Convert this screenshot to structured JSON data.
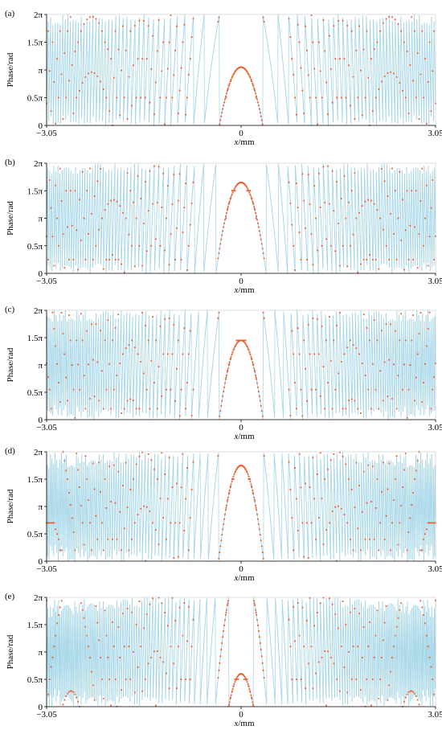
{
  "colors": {
    "curve": "#9fd3e6",
    "samples": "#f05a28",
    "axis": "#000000"
  },
  "chart_data": [
    {
      "panel_label": "(a)",
      "type": "line",
      "xlabel_var": "x",
      "xlabel_unit": "/mm",
      "ylabel": "Phase/rad",
      "x_ticks": [
        "−3.05",
        "0",
        "3.05"
      ],
      "y_ticks": [
        "0",
        "0.5π",
        "π",
        "1.5π",
        "2π"
      ],
      "xlim": [
        -3.05,
        3.05
      ],
      "ylim_pi": [
        0,
        2
      ],
      "series": [
        {
          "values_note": "",
          "wrap_period_pi": 2
        }
      ],
      "center_phase_pi": 1.05,
      "sample_levels_pi": [
        0.5,
        1.2,
        1.5,
        1.7
      ]
    },
    {
      "panel_label": "(b)",
      "type": "line",
      "xlabel_var": "x",
      "xlabel_unit": "/mm",
      "ylabel": "Phase/rad",
      "x_ticks": [
        "−3.05",
        "0",
        "3.05"
      ],
      "y_ticks": [
        "0",
        "0.5π",
        "π",
        "1.5π",
        "2π"
      ],
      "xlim": [
        -3.05,
        3.05
      ],
      "ylim_pi": [
        0,
        2
      ],
      "center_phase_pi": 1.65,
      "sample_levels_pi": [
        0.25,
        0.5,
        1.0,
        1.5
      ]
    },
    {
      "panel_label": "(c)",
      "type": "line",
      "xlabel_var": "x",
      "xlabel_unit": "/mm",
      "ylabel": "Phase/rad",
      "x_ticks": [
        "−3.05",
        "0",
        "3.05"
      ],
      "y_ticks": [
        "0",
        "0.5π",
        "π",
        "1.5π",
        "2π"
      ],
      "xlim": [
        -3.05,
        3.05
      ],
      "ylim_pi": [
        0,
        2
      ],
      "center_phase_pi": 1.45,
      "sample_levels_pi": [
        0.2,
        0.55,
        1.2,
        1.45
      ]
    },
    {
      "panel_label": "(d)",
      "type": "line",
      "xlabel_var": "x",
      "xlabel_unit": "/mm",
      "ylabel": "Phase/rad",
      "x_ticks": [
        "−3.05",
        "0",
        "3.05"
      ],
      "y_ticks": [
        "0",
        "0.5π",
        "π",
        "1.5π",
        "2π"
      ],
      "xlim": [
        -3.05,
        3.05
      ],
      "ylim_pi": [
        0,
        2
      ],
      "center_phase_pi": 1.75,
      "sample_levels_pi": [
        0.2,
        0.4,
        0.7,
        1.5
      ]
    },
    {
      "panel_label": "(e)",
      "type": "line",
      "xlabel_var": "x",
      "xlabel_unit": "/mm",
      "ylabel": "Phase/rad",
      "x_ticks": [
        "−3.05",
        "0",
        "3.05"
      ],
      "y_ticks": [
        "0",
        "0.5π",
        "π",
        "1.5π",
        "2π"
      ],
      "xlim": [
        -3.05,
        3.05
      ],
      "ylim_pi": [
        0,
        2
      ],
      "center_phase_pi": 0.6,
      "sample_levels_pi": [
        0.5,
        0.9,
        1.1,
        1.3
      ]
    }
  ]
}
